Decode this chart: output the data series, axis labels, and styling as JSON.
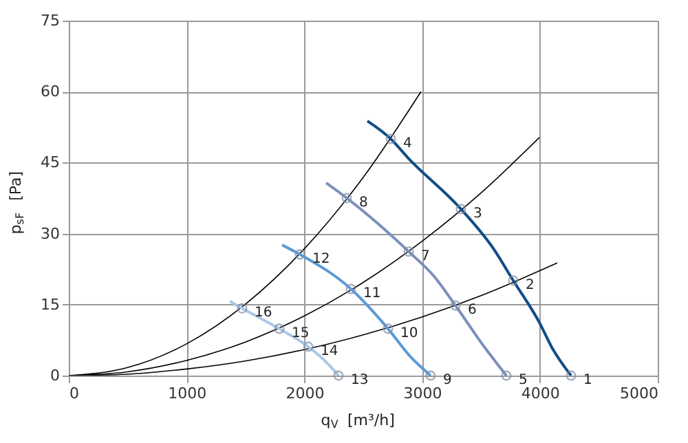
{
  "chart_data": {
    "type": "line",
    "xlabel": "q$_{V}$ [m³/h]",
    "ylabel": "p$_{sF}$ [Pa]",
    "xlim": [
      0,
      5000
    ],
    "xticks": [
      0,
      1000,
      2000,
      3000,
      4000,
      5000
    ],
    "ylim": [
      0,
      75
    ],
    "yticks": [
      0,
      15,
      30,
      45,
      60,
      75
    ],
    "grid": true,
    "line_style": "solid",
    "series": [
      {
        "color": "#000000",
        "x": [
          0,
          500,
          1000,
          1500,
          2000,
          2500,
          2990
        ],
        "values": [
          0,
          1.7,
          6.7,
          15.1,
          26.8,
          41.9,
          60
        ]
      },
      {
        "color": "#000000",
        "x": [
          0,
          500,
          1000,
          1500,
          2000,
          2500,
          3000,
          3500,
          3995
        ],
        "values": [
          0,
          0.8,
          3.2,
          7.1,
          12.6,
          19.7,
          28.4,
          38.6,
          50.3
        ]
      },
      {
        "color": "#000000",
        "x": [
          0,
          500,
          1000,
          1500,
          2000,
          2500,
          3000,
          3500,
          4147
        ],
        "values": [
          0,
          0.3,
          1.4,
          3.1,
          5.5,
          8.6,
          12.4,
          16.9,
          23.8
        ]
      },
      {
        "color": "#104d85",
        "x": [
          2535,
          2734,
          2880,
          3329,
          3600,
          3773,
          4000,
          4100,
          4264
        ],
        "values": [
          53.8,
          50,
          46,
          35.2,
          27,
          20.1,
          11,
          6,
          0
        ]
      },
      {
        "color": "#7b8fba",
        "x": [
          2185,
          2360,
          2886,
          3100,
          3283,
          3500,
          3715
        ],
        "values": [
          40.7,
          37.5,
          26.2,
          21,
          14.8,
          7,
          0
        ]
      },
      {
        "color": "#5b9bd5",
        "x": [
          1811,
          1963,
          2395,
          2710,
          2900,
          3072
        ],
        "values": [
          27.6,
          25.6,
          18.3,
          9.9,
          4,
          0
        ]
      },
      {
        "color": "#a9c8e8",
        "x": [
          1367,
          1472,
          1787,
          2033,
          2200,
          2290
        ],
        "values": [
          15.7,
          14.2,
          9.9,
          6.1,
          2.5,
          0
        ]
      },
      {
        "type": "scatter",
        "marker": "circle",
        "color": "#7f8fa6",
        "x": [
          4264,
          3773,
          3329,
          2734,
          3715,
          3283,
          2886,
          2360,
          3072,
          2710,
          2395,
          1963,
          2290,
          2033,
          1787,
          1472
        ],
        "values": [
          0,
          20.1,
          35.2,
          50,
          0,
          14.8,
          26.2,
          37.5,
          0,
          9.9,
          18.3,
          25.6,
          0,
          6.1,
          9.9,
          14.2
        ]
      }
    ],
    "annotations": [
      {
        "text": "1",
        "x": 4264,
        "y": 0
      },
      {
        "text": "2",
        "x": 3773,
        "y": 20.1
      },
      {
        "text": "3",
        "x": 3329,
        "y": 35.2
      },
      {
        "text": "4",
        "x": 2734,
        "y": 50
      },
      {
        "text": "5",
        "x": 3715,
        "y": 0
      },
      {
        "text": "6",
        "x": 3283,
        "y": 14.8
      },
      {
        "text": "7",
        "x": 2886,
        "y": 26.2
      },
      {
        "text": "8",
        "x": 2360,
        "y": 37.5
      },
      {
        "text": "9",
        "x": 3072,
        "y": 0
      },
      {
        "text": "10",
        "x": 2710,
        "y": 9.9
      },
      {
        "text": "11",
        "x": 2395,
        "y": 18.3
      },
      {
        "text": "12",
        "x": 1963,
        "y": 25.6
      },
      {
        "text": "13",
        "x": 2290,
        "y": 0
      },
      {
        "text": "14",
        "x": 2033,
        "y": 6.1
      },
      {
        "text": "15",
        "x": 1787,
        "y": 9.9
      },
      {
        "text": "16",
        "x": 1472,
        "y": 14.2
      }
    ]
  }
}
